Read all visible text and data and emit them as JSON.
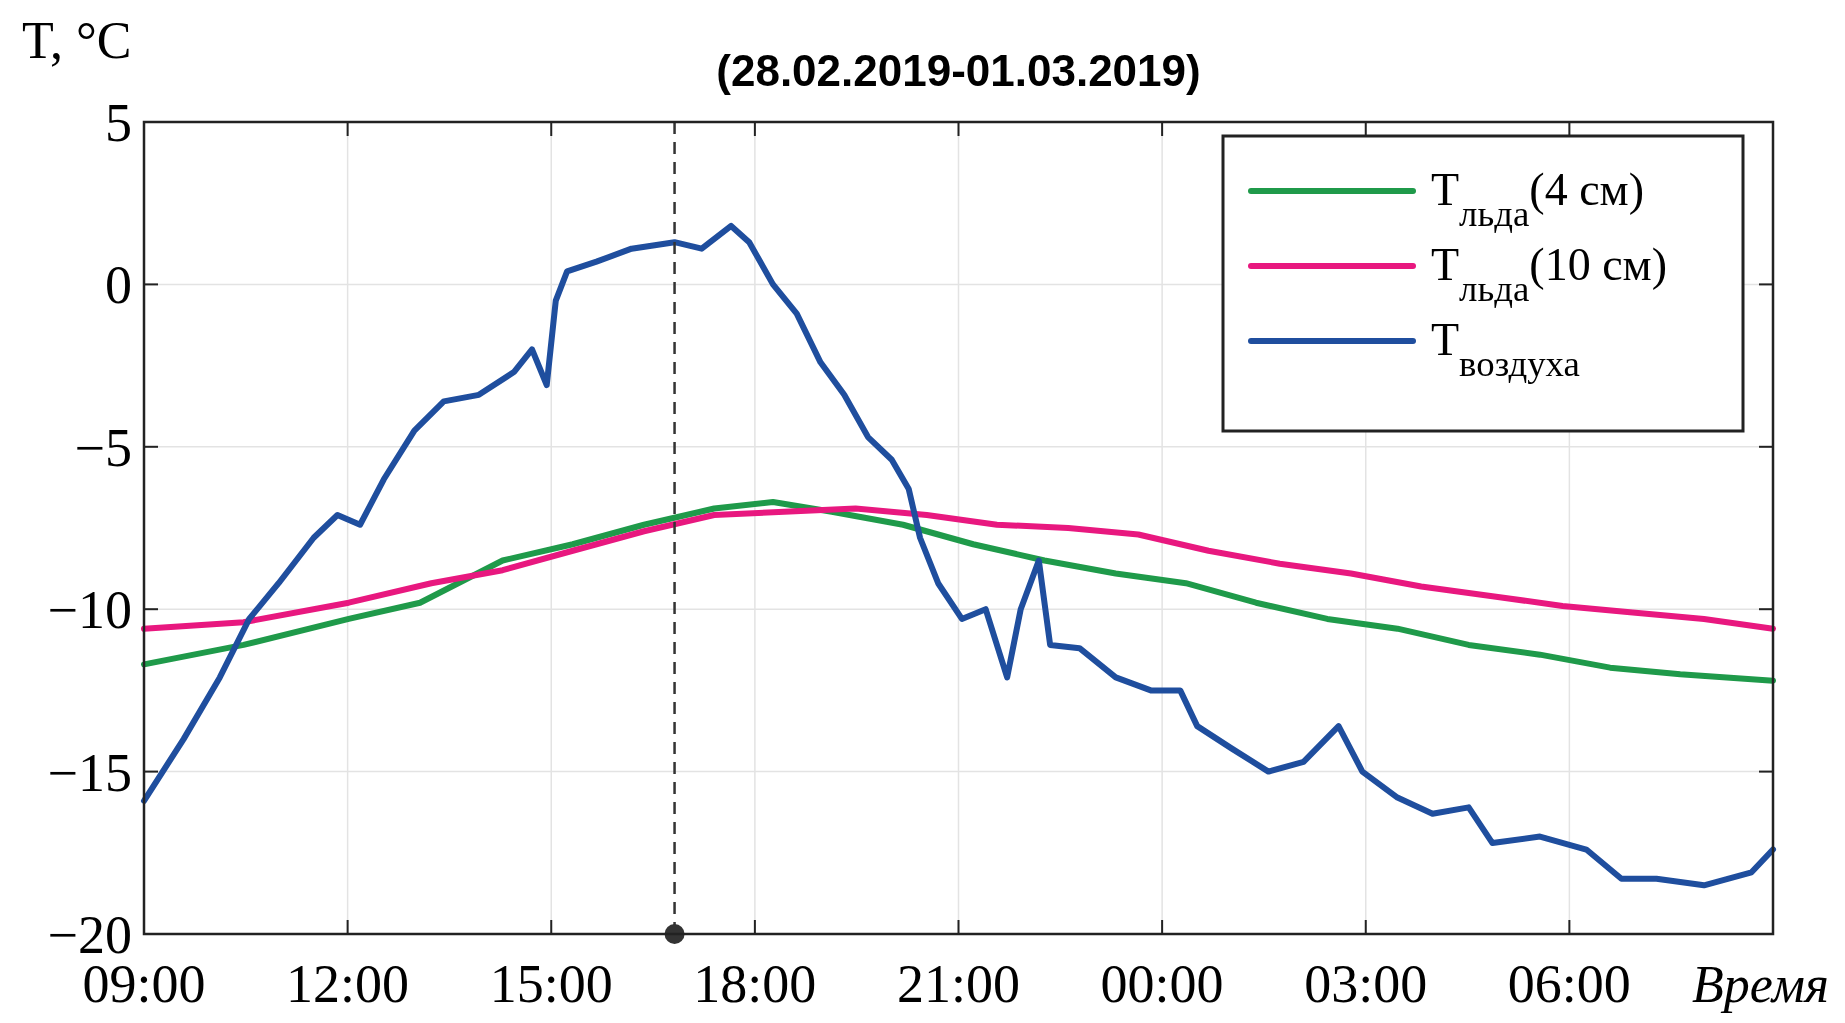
{
  "chart_data": {
    "type": "line",
    "title": "(28.02.2019-01.03.2019)",
    "xlabel": "Время",
    "ylabel": "T, °C",
    "xlim": [
      "2019-02-28T09:00",
      "2019-03-01T09:00"
    ],
    "ylim": [
      -20,
      5
    ],
    "xticks": [
      {
        "value": "2019-02-28T09:00",
        "label": "09:00"
      },
      {
        "value": "2019-02-28T12:00",
        "label": "12:00"
      },
      {
        "value": "2019-02-28T15:00",
        "label": "15:00"
      },
      {
        "value": "2019-02-28T18:00",
        "label": "18:00"
      },
      {
        "value": "2019-02-28T21:00",
        "label": "21:00"
      },
      {
        "value": "2019-03-01T00:00",
        "label": "00:00"
      },
      {
        "value": "2019-03-01T03:00",
        "label": "03:00"
      },
      {
        "value": "2019-03-01T06:00",
        "label": "06:00"
      }
    ],
    "yticks": [
      5,
      0,
      {
        "value": -5,
        "label": "−5"
      },
      {
        "value": -10,
        "label": "−10"
      },
      {
        "value": -15,
        "label": "−15"
      },
      {
        "value": -20,
        "label": "−20"
      }
    ],
    "grid": true,
    "legend": "top right",
    "line_style": "solid",
    "ref_lines": [
      {
        "axis": "x",
        "value": "2019-02-28T16:49",
        "color": "#333333",
        "line_style": "dashed"
      }
    ],
    "series": [
      {
        "name": "T$_{льда}$(4 см)",
        "color": "#1f9a4a",
        "x": [
          "2019-02-28T09:00",
          "2019-02-28T10:28",
          "2019-02-28T12:01",
          "2019-02-28T13:04",
          "2019-02-28T14:17",
          "2019-02-28T15:19",
          "2019-02-28T16:22",
          "2019-02-28T17:24",
          "2019-02-28T18:16",
          "2019-02-28T19:08",
          "2019-02-28T20:11",
          "2019-02-28T21:13",
          "2019-02-28T22:16",
          "2019-02-28T23:19",
          "2019-03-01T00:21",
          "2019-03-01T01:23",
          "2019-03-01T02:26",
          "2019-03-01T03:28",
          "2019-03-01T04:31",
          "2019-03-01T05:34",
          "2019-03-01T06:36",
          "2019-03-01T07:38",
          "2019-03-01T09:00"
        ],
        "values": [
          -11.7,
          -11.1,
          -10.3,
          -9.8,
          -8.5,
          -8.0,
          -7.4,
          -6.9,
          -6.7,
          -7.0,
          -7.4,
          -8.0,
          -8.5,
          -8.9,
          -9.2,
          -9.8,
          -10.3,
          -10.6,
          -11.1,
          -11.4,
          -11.8,
          -12.0,
          -12.2
        ]
      },
      {
        "name": "T$_{льда}$(10 см)",
        "color": "#e8187f",
        "x": [
          "2019-02-28T09:00",
          "2019-02-28T10:28",
          "2019-02-28T12:01",
          "2019-02-28T13:14",
          "2019-02-28T14:17",
          "2019-02-28T15:19",
          "2019-02-28T16:22",
          "2019-02-28T17:24",
          "2019-02-28T18:26",
          "2019-02-28T19:29",
          "2019-02-28T20:32",
          "2019-02-28T21:34",
          "2019-02-28T22:37",
          "2019-02-28T23:39",
          "2019-03-01T00:41",
          "2019-03-01T01:44",
          "2019-03-01T02:47",
          "2019-03-01T03:49",
          "2019-03-01T04:52",
          "2019-03-01T05:54",
          "2019-03-01T06:56",
          "2019-03-01T07:59",
          "2019-03-01T09:00"
        ],
        "values": [
          -10.6,
          -10.4,
          -9.8,
          -9.2,
          -8.8,
          -8.2,
          -7.6,
          -7.1,
          -7.0,
          -6.9,
          -7.1,
          -7.4,
          -7.5,
          -7.7,
          -8.2,
          -8.6,
          -8.9,
          -9.3,
          -9.6,
          -9.9,
          -10.1,
          -10.3,
          -10.6
        ]
      },
      {
        "name": "T$_{воздуха}$",
        "color": "#1f4e9e",
        "x": [
          "2019-02-28T09:00",
          "2019-02-28T09:35",
          "2019-02-28T10:07",
          "2019-02-28T10:33",
          "2019-02-28T10:59",
          "2019-02-28T11:30",
          "2019-02-28T11:51",
          "2019-02-28T12:11",
          "2019-02-28T12:32",
          "2019-02-28T12:59",
          "2019-02-28T13:25",
          "2019-02-28T13:56",
          "2019-02-28T14:27",
          "2019-02-28T14:43",
          "2019-02-28T14:56",
          "2019-02-28T15:04",
          "2019-02-28T15:14",
          "2019-02-28T15:40",
          "2019-02-28T16:11",
          "2019-02-28T16:49",
          "2019-02-28T17:13",
          "2019-02-28T17:39",
          "2019-02-28T17:55",
          "2019-02-28T18:16",
          "2019-02-28T18:37",
          "2019-02-28T18:58",
          "2019-02-28T19:19",
          "2019-02-28T19:40",
          "2019-02-28T20:01",
          "2019-02-28T20:16",
          "2019-02-28T20:26",
          "2019-02-28T20:42",
          "2019-02-28T21:03",
          "2019-02-28T21:24",
          "2019-02-28T21:43",
          "2019-02-28T21:55",
          "2019-02-28T22:11",
          "2019-02-28T22:21",
          "2019-02-28T22:47",
          "2019-02-28T23:19",
          "2019-02-28T23:50",
          "2019-03-01T00:16",
          "2019-03-01T00:31",
          "2019-03-01T01:02",
          "2019-03-01T01:34",
          "2019-03-01T02:05",
          "2019-03-01T02:36",
          "2019-03-01T02:57",
          "2019-03-01T03:28",
          "2019-03-01T03:59",
          "2019-03-01T04:31",
          "2019-03-01T04:52",
          "2019-03-01T05:34",
          "2019-03-01T06:15",
          "2019-03-01T06:46",
          "2019-03-01T07:17",
          "2019-03-01T07:59",
          "2019-03-01T08:41",
          "2019-03-01T09:00"
        ],
        "values": [
          -15.9,
          -14.0,
          -12.1,
          -10.3,
          -9.2,
          -7.8,
          -7.1,
          -7.4,
          -6.0,
          -4.5,
          -3.6,
          -3.4,
          -2.7,
          -2.0,
          -3.1,
          -0.5,
          0.4,
          0.7,
          1.1,
          1.3,
          1.1,
          1.8,
          1.3,
          0,
          -0.9,
          -2.4,
          -3.4,
          -4.7,
          -5.4,
          -6.3,
          -7.8,
          -9.2,
          -10.3,
          -10.0,
          -12.1,
          -10.0,
          -8.5,
          -11.1,
          -11.2,
          -12.1,
          -12.5,
          -12.5,
          -13.6,
          -14.3,
          -15.0,
          -14.7,
          -13.6,
          -15.0,
          -15.8,
          -16.3,
          -16.1,
          -17.2,
          -17.0,
          -17.4,
          -18.3,
          -18.3,
          -18.5,
          -18.1,
          -17.4
        ]
      }
    ]
  }
}
